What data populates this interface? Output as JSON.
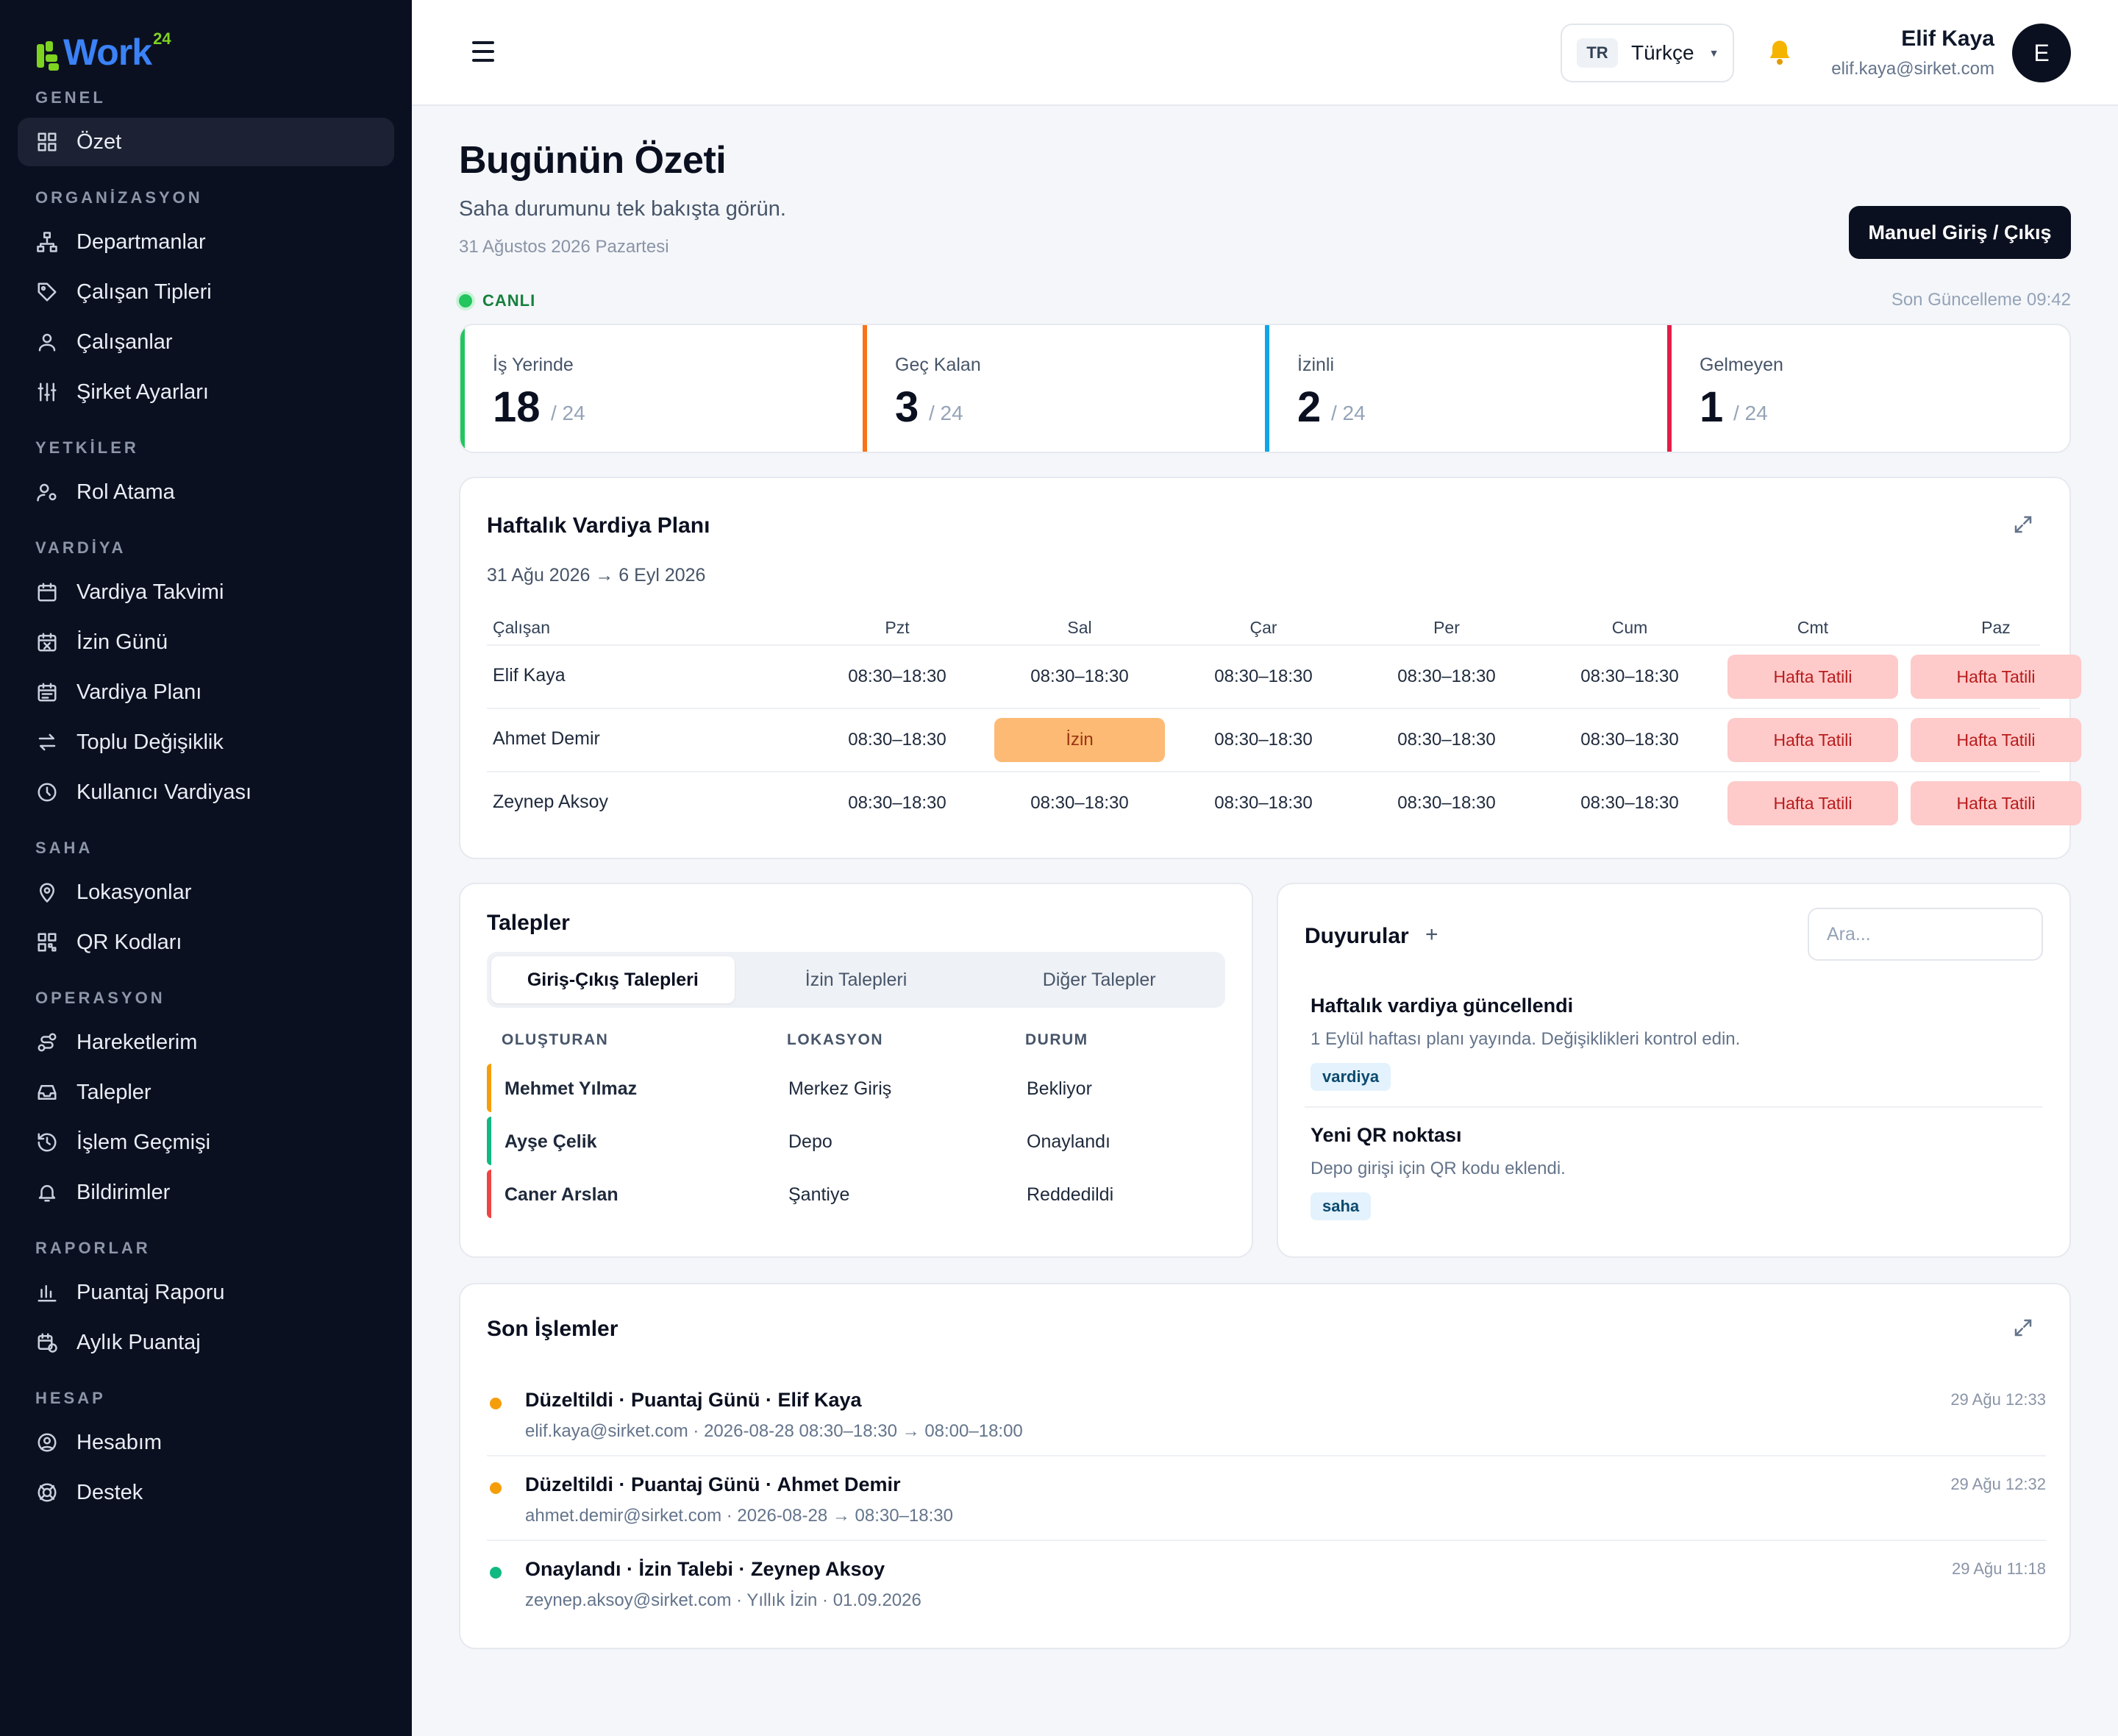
{
  "brand": {
    "name": "Work",
    "sup": "24",
    "color": "#3b82f6",
    "accent": "#7ed321"
  },
  "sidebar": {
    "sections": [
      {
        "label": "GENEL",
        "items": [
          {
            "label": "Özet",
            "icon": "grid-icon",
            "active": true
          }
        ]
      },
      {
        "label": "ORGANİZASYON",
        "items": [
          {
            "label": "Departmanlar",
            "icon": "org-chart-icon"
          },
          {
            "label": "Çalışan Tipleri",
            "icon": "tag-icon"
          },
          {
            "label": "Çalışanlar",
            "icon": "user-icon"
          },
          {
            "label": "Şirket Ayarları",
            "icon": "sliders-icon"
          }
        ]
      },
      {
        "label": "YETKİLER",
        "items": [
          {
            "label": "Rol Atama",
            "icon": "user-cog-icon"
          }
        ]
      },
      {
        "label": "VARDİYA",
        "items": [
          {
            "label": "Vardiya Takvimi",
            "icon": "calendar-icon"
          },
          {
            "label": "İzin Günü",
            "icon": "calendar-x-icon"
          },
          {
            "label": "Vardiya Planı",
            "icon": "calendar-list-icon"
          },
          {
            "label": "Toplu Değişiklik",
            "icon": "swap-icon"
          },
          {
            "label": "Kullanıcı Vardiyası",
            "icon": "clock-icon"
          }
        ]
      },
      {
        "label": "SAHA",
        "items": [
          {
            "label": "Lokasyonlar",
            "icon": "map-pin-icon"
          },
          {
            "label": "QR Kodları",
            "icon": "qr-icon"
          }
        ]
      },
      {
        "label": "OPERASYON",
        "items": [
          {
            "label": "Hareketlerim",
            "icon": "route-icon"
          },
          {
            "label": "Talepler",
            "icon": "inbox-icon"
          },
          {
            "label": "İşlem Geçmişi",
            "icon": "history-icon"
          },
          {
            "label": "Bildirimler",
            "icon": "bell-icon"
          }
        ]
      },
      {
        "label": "RAPORLAR",
        "items": [
          {
            "label": "Puantaj Raporu",
            "icon": "bar-chart-icon"
          },
          {
            "label": "Aylık Puantaj",
            "icon": "calendar-clock-icon"
          }
        ]
      },
      {
        "label": "HESAP",
        "items": [
          {
            "label": "Hesabım",
            "icon": "user-circle-icon"
          },
          {
            "label": "Destek",
            "icon": "lifebuoy-icon"
          }
        ]
      }
    ]
  },
  "topbar": {
    "lang_code": "TR",
    "lang_name": "Türkçe",
    "user_name": "Elif Kaya",
    "user_email": "elif.kaya@sirket.com",
    "avatar_initial": "E"
  },
  "page": {
    "title": "Bugünün Özeti",
    "subtitle": "Saha durumunu tek bakışta görün.",
    "date": "31 Ağustos 2026 Pazartesi",
    "manual_button": "Manuel Giriş / Çıkış",
    "live_label": "CANLI",
    "last_update": "Son Güncelleme 09:42"
  },
  "stats": [
    {
      "label": "İş Yerinde",
      "value": "18",
      "total": "/ 24",
      "color": "#22c55e"
    },
    {
      "label": "Geç Kalan",
      "value": "3",
      "total": "/ 24",
      "color": "#f97316"
    },
    {
      "label": "İzinli",
      "value": "2",
      "total": "/ 24",
      "color": "#0ea5e9"
    },
    {
      "label": "Gelmeyen",
      "value": "1",
      "total": "/ 24",
      "color": "#e11d48"
    }
  ],
  "shift_plan": {
    "title": "Haftalık Vardiya Planı",
    "range": "31 Ağu 2026 → 6 Eyl 2026",
    "headers": [
      "Çalışan",
      "Pzt",
      "Sal",
      "Çar",
      "Per",
      "Cum",
      "Cmt",
      "Paz"
    ],
    "rows": [
      {
        "name": "Elif Kaya",
        "cells": [
          {
            "t": "08:30–18:30",
            "k": "n"
          },
          {
            "t": "08:30–18:30",
            "k": "n"
          },
          {
            "t": "08:30–18:30",
            "k": "n"
          },
          {
            "t": "08:30–18:30",
            "k": "n"
          },
          {
            "t": "08:30–18:30",
            "k": "n"
          },
          {
            "t": "Hafta Tatili",
            "k": "off"
          },
          {
            "t": "Hafta Tatili",
            "k": "off"
          }
        ]
      },
      {
        "name": "Ahmet Demir",
        "cells": [
          {
            "t": "08:30–18:30",
            "k": "n"
          },
          {
            "t": "İzin",
            "k": "leave"
          },
          {
            "t": "08:30–18:30",
            "k": "n"
          },
          {
            "t": "08:30–18:30",
            "k": "n"
          },
          {
            "t": "08:30–18:30",
            "k": "n"
          },
          {
            "t": "Hafta Tatili",
            "k": "off"
          },
          {
            "t": "Hafta Tatili",
            "k": "off"
          }
        ]
      },
      {
        "name": "Zeynep Aksoy",
        "cells": [
          {
            "t": "08:30–18:30",
            "k": "n"
          },
          {
            "t": "08:30–18:30",
            "k": "n"
          },
          {
            "t": "08:30–18:30",
            "k": "n"
          },
          {
            "t": "08:30–18:30",
            "k": "n"
          },
          {
            "t": "08:30–18:30",
            "k": "n"
          },
          {
            "t": "Hafta Tatili",
            "k": "off"
          },
          {
            "t": "Hafta Tatili",
            "k": "off"
          }
        ]
      }
    ]
  },
  "requests": {
    "title": "Talepler",
    "tabs": [
      "Giriş-Çıkış Talepleri",
      "İzin Talepleri",
      "Diğer Talepler"
    ],
    "active_tab": 0,
    "headers": [
      "OLUŞTURAN",
      "LOKASYON",
      "DURUM"
    ],
    "rows": [
      {
        "creator": "Mehmet Yılmaz",
        "location": "Merkez Giriş",
        "status": "Bekliyor",
        "color": "#f59e0b"
      },
      {
        "creator": "Ayşe Çelik",
        "location": "Depo",
        "status": "Onaylandı",
        "color": "#10b981"
      },
      {
        "creator": "Caner Arslan",
        "location": "Şantiye",
        "status": "Reddedildi",
        "color": "#ef4444"
      }
    ]
  },
  "announcements": {
    "title": "Duyurular",
    "add": "+",
    "search_placeholder": "Ara...",
    "items": [
      {
        "title": "Haftalık vardiya güncellendi",
        "desc": "1 Eylül haftası planı yayında. Değişiklikleri kontrol edin.",
        "tag": "vardiya"
      },
      {
        "title": "Yeni QR noktası",
        "desc": "Depo girişi için QR kodu eklendi.",
        "tag": "saha"
      }
    ]
  },
  "recent": {
    "title": "Son İşlemler",
    "items": [
      {
        "title": "Düzeltildi · Puantaj Günü · Elif Kaya",
        "desc": "elif.kaya@sirket.com · 2026-08-28 08:30–18:30 → 08:00–18:00",
        "time": "29 Ağu 12:33",
        "color": "#f59e0b"
      },
      {
        "title": "Düzeltildi · Puantaj Günü · Ahmet Demir",
        "desc": "ahmet.demir@sirket.com · 2026-08-28 → 08:30–18:30",
        "time": "29 Ağu 12:32",
        "color": "#f59e0b"
      },
      {
        "title": "Onaylandı · İzin Talebi · Zeynep Aksoy",
        "desc": "zeynep.aksoy@sirket.com · Yıllık İzin · 01.09.2026",
        "time": "29 Ağu 11:18",
        "color": "#10b981"
      }
    ]
  }
}
